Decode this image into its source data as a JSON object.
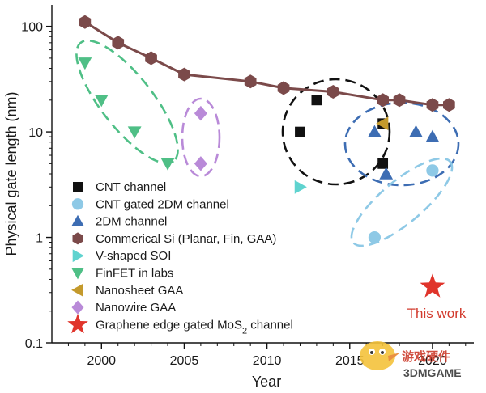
{
  "chart_data": {
    "type": "scatter",
    "xlabel": "Year",
    "ylabel": "Physical gate length (nm)",
    "xlim": [
      1997,
      2022.5
    ],
    "ylim": [
      0.1,
      160
    ],
    "y_scale": "log",
    "x_ticks": [
      2000,
      2005,
      2010,
      2015,
      2020
    ],
    "x_tick_labels": [
      "2000",
      "2005",
      "2010",
      "2015",
      "2020"
    ],
    "y_ticks": [
      0.1,
      1,
      10,
      100
    ],
    "y_tick_labels": [
      "0.1",
      "1",
      "10",
      "100"
    ],
    "legend_position": "bottom-left",
    "series": [
      {
        "name": "CNT channel",
        "marker": "square",
        "color": "#111111",
        "points": [
          [
            2012,
            10
          ],
          [
            2013,
            20
          ],
          [
            2017,
            12
          ],
          [
            2017,
            5
          ]
        ]
      },
      {
        "name": "CNT gated 2DM channel",
        "marker": "circle",
        "color": "#8ec9e6",
        "points": [
          [
            2016.5,
            1.0
          ],
          [
            2020,
            4.3
          ]
        ]
      },
      {
        "name": "2DM channel",
        "marker": "triangle-up",
        "color": "#3d6db3",
        "points": [
          [
            2016.5,
            10
          ],
          [
            2017.2,
            4
          ],
          [
            2019,
            10
          ],
          [
            2020,
            9
          ]
        ]
      },
      {
        "name": "Commerical Si (Planar, Fin, GAA)",
        "marker": "hexagon",
        "color": "#7b4a4a",
        "points": [
          [
            1999,
            110
          ],
          [
            2001,
            70
          ],
          [
            2003,
            50
          ],
          [
            2005,
            35
          ],
          [
            2009,
            30
          ],
          [
            2011,
            26
          ],
          [
            2014,
            24
          ],
          [
            2017,
            20
          ],
          [
            2018,
            20
          ],
          [
            2020,
            18
          ],
          [
            2021,
            18
          ]
        ]
      },
      {
        "name": "V-shaped SOI",
        "marker": "triangle-right",
        "color": "#5fd3cf",
        "points": [
          [
            2012,
            3
          ]
        ]
      },
      {
        "name": "FinFET in labs",
        "marker": "triangle-down",
        "color": "#4fbf86",
        "points": [
          [
            1999,
            45
          ],
          [
            2000,
            20
          ],
          [
            2002,
            10
          ],
          [
            2004,
            5
          ]
        ]
      },
      {
        "name": "Nanosheet GAA",
        "marker": "triangle-left",
        "color": "#c49a2c",
        "points": [
          [
            2017,
            12
          ]
        ]
      },
      {
        "name": "Nanowire GAA",
        "marker": "diamond",
        "color": "#b98ad8",
        "points": [
          [
            2006,
            15
          ],
          [
            2006,
            5
          ]
        ]
      },
      {
        "name": "Graphene edge gated MoS",
        "name_subscript": "2",
        "name_suffix": " channel",
        "marker": "star",
        "color": "#e0342b",
        "points": [
          [
            2020,
            0.34
          ]
        ]
      }
    ],
    "connected_series": "Commerical Si (Planar, Fin, GAA)",
    "annotation": {
      "text": "This work",
      "color": "#d23b2e",
      "x": 2020,
      "y": 0.21
    },
    "group_ellipses": [
      {
        "color": "#4fbf86",
        "dash": "dashed"
      },
      {
        "color": "#b98ad8",
        "dash": "dashed"
      },
      {
        "color": "#111111",
        "dash": "dashed"
      },
      {
        "color": "#3d6db3",
        "dash": "dashed"
      },
      {
        "color": "#8ec9e6",
        "dash": "dashed"
      }
    ]
  },
  "watermark": {
    "text": "游戏硬件",
    "subtext": "3DMGAME"
  }
}
